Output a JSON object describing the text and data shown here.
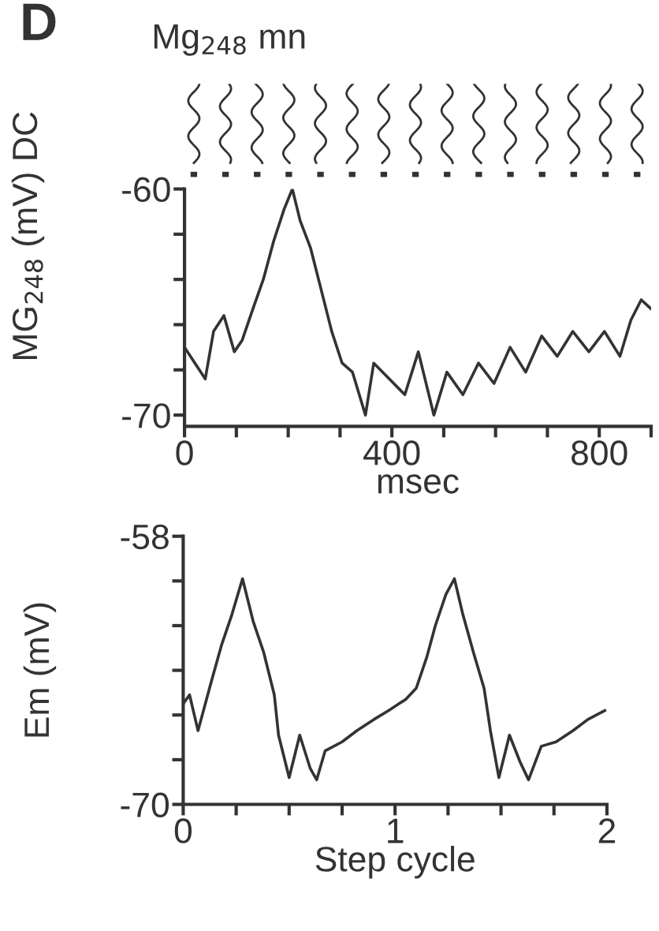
{
  "chart_data": [
    {
      "type": "line",
      "title": "Mg$_{248}$ mn",
      "ylabel": "MG$_{248}$ (mV) DC",
      "xlabel": "msec",
      "annotations": [
        "D"
      ],
      "x": [
        0,
        20,
        40,
        56,
        76,
        96,
        111,
        132,
        152,
        172,
        192,
        208,
        223,
        243,
        263,
        284,
        304,
        324,
        349,
        365,
        395,
        425,
        451,
        481,
        506,
        537,
        567,
        597,
        628,
        658,
        689,
        719,
        749,
        780,
        810,
        840,
        861,
        881,
        900
      ],
      "series": [
        {
          "color": "#333333",
          "values": [
            -67.0,
            -67.7,
            -68.4,
            -66.3,
            -65.6,
            -67.2,
            -66.7,
            -65.3,
            -64.0,
            -62.3,
            -60.9,
            -60.0,
            -61.4,
            -62.6,
            -64.4,
            -66.3,
            -67.7,
            -68.1,
            -70.0,
            -67.7,
            -68.4,
            -69.1,
            -67.2,
            -70.0,
            -68.1,
            -69.1,
            -67.7,
            -68.6,
            -67.0,
            -68.1,
            -66.5,
            -67.4,
            -66.3,
            -67.2,
            -66.3,
            -67.4,
            -65.8,
            -64.9,
            -65.3
          ]
        }
      ],
      "xlim": [
        0,
        900
      ],
      "ylim": [
        -70.5,
        -60
      ],
      "xticks": [
        0,
        {
          "value": 100,
          "label": null
        },
        {
          "value": 200,
          "label": null
        },
        {
          "value": 300,
          "label": null
        },
        400,
        {
          "value": 500,
          "label": null
        },
        {
          "value": 600,
          "label": null
        },
        {
          "value": 700,
          "label": null
        },
        800,
        {
          "value": 900,
          "label": null
        }
      ],
      "yticks": [
        -60,
        {
          "value": -62,
          "label": null
        },
        {
          "value": -64,
          "label": null
        },
        {
          "value": -66,
          "label": null
        },
        {
          "value": -68,
          "label": null
        },
        -70
      ],
      "grid": false,
      "legend": false,
      "marker": "none",
      "line_style": "solid"
    },
    {
      "type": "line",
      "ylabel": "Em (mV)",
      "xlabel": "Step cycle",
      "x": [
        0,
        0.03,
        0.07,
        0.13,
        0.18,
        0.23,
        0.28,
        0.33,
        0.38,
        0.43,
        0.45,
        0.5,
        0.55,
        0.6,
        0.63,
        0.67,
        0.75,
        0.82,
        0.9,
        0.97,
        1.05,
        1.1,
        1.15,
        1.19,
        1.24,
        1.28,
        1.32,
        1.37,
        1.42,
        1.45,
        1.49,
        1.54,
        1.59,
        1.63,
        1.69,
        1.76,
        1.84,
        1.91,
        1.99
      ],
      "series": [
        {
          "color": "#333333",
          "values": [
            -65.5,
            -65.1,
            -66.7,
            -64.6,
            -62.9,
            -61.5,
            -59.9,
            -61.8,
            -63.2,
            -65.1,
            -66.9,
            -68.8,
            -66.9,
            -68.4,
            -68.9,
            -67.6,
            -67.2,
            -66.7,
            -66.2,
            -65.8,
            -65.3,
            -64.8,
            -63.4,
            -62.0,
            -60.6,
            -59.9,
            -61.5,
            -63.2,
            -64.8,
            -66.7,
            -68.8,
            -66.9,
            -68.1,
            -68.9,
            -67.4,
            -67.2,
            -66.7,
            -66.2,
            -65.8
          ]
        }
      ],
      "xlim": [
        0,
        2
      ],
      "ylim": [
        -70,
        -58
      ],
      "xticks": [
        0,
        {
          "value": 0.25,
          "label": null
        },
        {
          "value": 0.5,
          "label": null
        },
        {
          "value": 0.75,
          "label": null
        },
        1,
        {
          "value": 1.25,
          "label": null
        },
        {
          "value": 1.5,
          "label": null
        },
        {
          "value": 1.75,
          "label": null
        },
        2
      ],
      "yticks": [
        -58,
        {
          "value": -60,
          "label": null
        },
        {
          "value": -62,
          "label": null
        },
        {
          "value": -64,
          "label": null
        },
        {
          "value": -66,
          "label": null
        },
        {
          "value": -68,
          "label": null
        },
        -70
      ],
      "grid": false,
      "legend": false,
      "marker": "none",
      "line_style": "solid"
    }
  ]
}
